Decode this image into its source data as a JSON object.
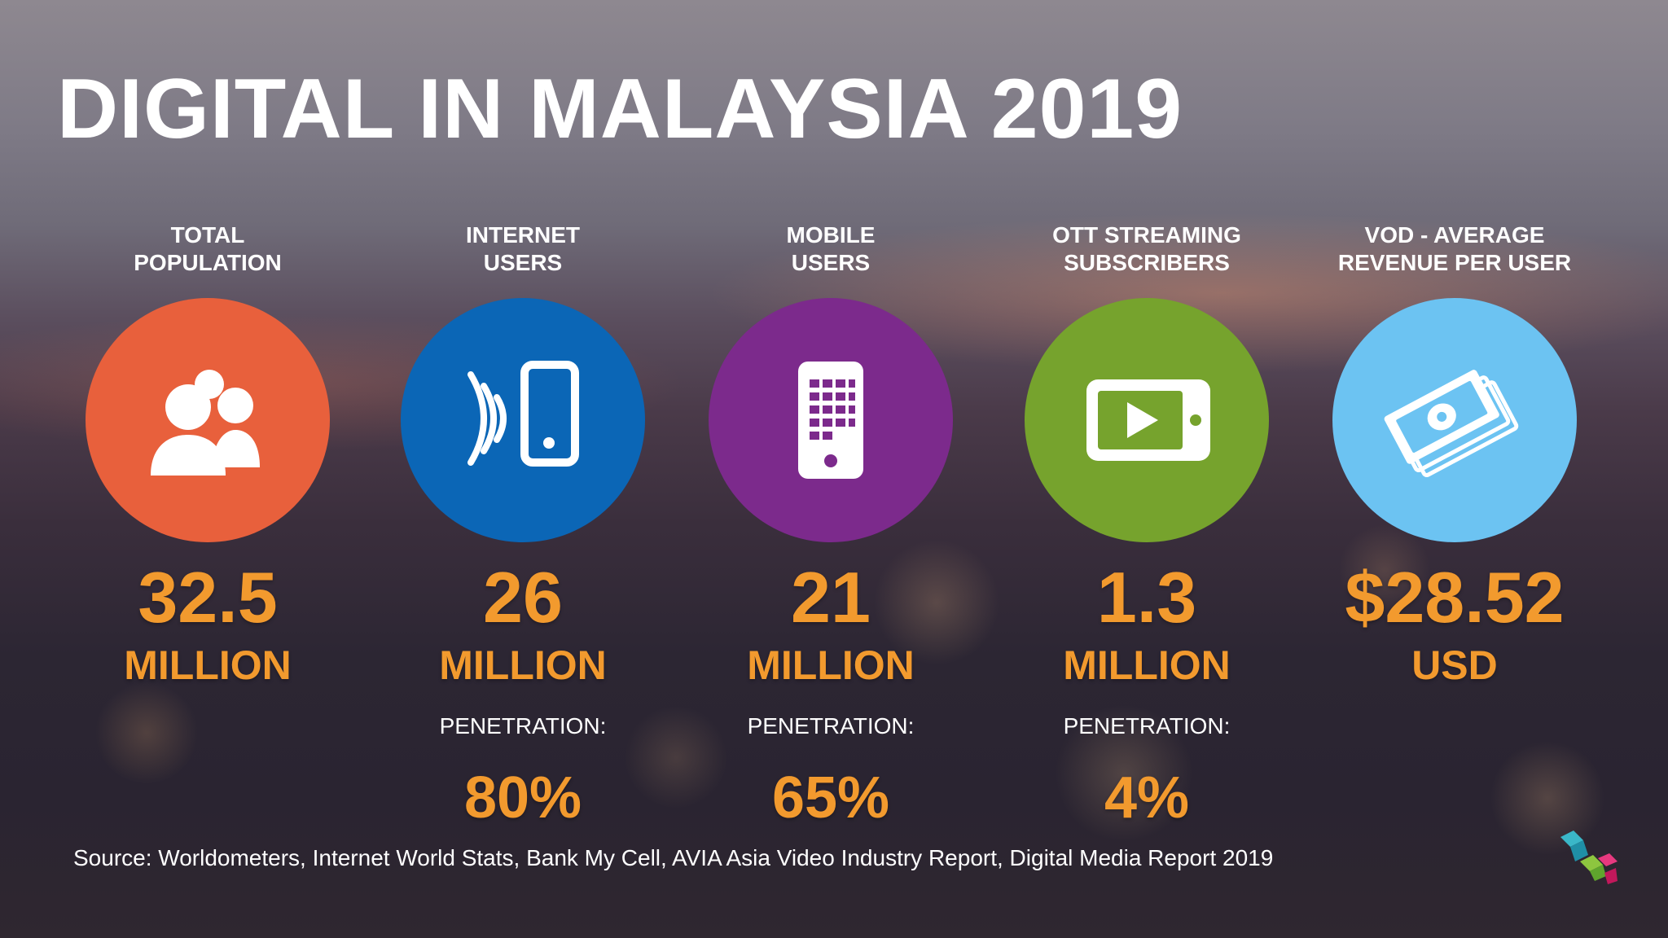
{
  "title": "DIGITAL IN MALAYSIA 2019",
  "stats": [
    {
      "label_line1": "TOTAL",
      "label_line2": "POPULATION",
      "icon": "people-icon",
      "color": "#e8603c",
      "value": "32.5",
      "unit": "MILLION",
      "penetration_label": "",
      "penetration_value": ""
    },
    {
      "label_line1": "INTERNET",
      "label_line2": "USERS",
      "icon": "wireless-phone-icon",
      "color": "#0b66b6",
      "value": "26",
      "unit": "MILLION",
      "penetration_label": "PENETRATION:",
      "penetration_value": "80%"
    },
    {
      "label_line1": "MOBILE",
      "label_line2": "USERS",
      "icon": "mobile-phone-icon",
      "color": "#7c2a8c",
      "value": "21",
      "unit": "MILLION",
      "penetration_label": "PENETRATION:",
      "penetration_value": "65%"
    },
    {
      "label_line1": "OTT STREAMING",
      "label_line2": "SUBSCRIBERS",
      "icon": "video-player-icon",
      "color": "#76a32d",
      "value": "1.3",
      "unit": "MILLION",
      "penetration_label": "PENETRATION:",
      "penetration_value": "4%"
    },
    {
      "label_line1": "VOD - AVERAGE",
      "label_line2": "REVENUE PER USER",
      "icon": "money-stack-icon",
      "color": "#6cc3f2",
      "value": "$28.52",
      "unit": "USD",
      "penetration_label": "",
      "penetration_value": ""
    }
  ],
  "source": "Source: Worldometers, Internet World Stats, Bank My Cell, AVIA Asia Video Industry Report, Digital Media Report 2019",
  "logo": "brand-logo"
}
